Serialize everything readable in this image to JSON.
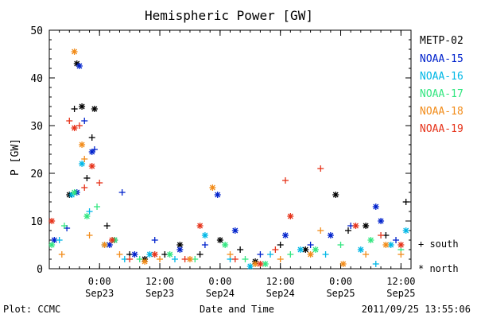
{
  "chart_data": {
    "type": "scatter",
    "title": "Hemispheric Power [GW]",
    "ylabel": "P [GW]",
    "xlabel": "Date and Time",
    "ylim": [
      0,
      50
    ],
    "yticks": [
      0,
      10,
      20,
      30,
      40,
      50
    ],
    "xlim": [
      "2011-09-22T14:00",
      "2011-09-25T14:00"
    ],
    "xticks": [
      {
        "time": "2011-09-23T00:00",
        "label_top": "0:00",
        "label_bottom": "Sep23"
      },
      {
        "time": "2011-09-23T12:00",
        "label_top": "12:00",
        "label_bottom": "Sep23"
      },
      {
        "time": "2011-09-24T00:00",
        "label_top": "0:00",
        "label_bottom": "Sep24"
      },
      {
        "time": "2011-09-24T12:00",
        "label_top": "12:00",
        "label_bottom": "Sep24"
      },
      {
        "time": "2011-09-25T00:00",
        "label_top": "0:00",
        "label_bottom": "Sep25"
      },
      {
        "time": "2011-09-25T12:00",
        "label_top": "12:00",
        "label_bottom": "Sep25"
      }
    ],
    "markers": {
      "south": "+",
      "north": "*"
    },
    "series": [
      {
        "name": "METP-02",
        "color": "#000000",
        "points": [
          {
            "t": "2011-09-22T18:00",
            "y": 15.5,
            "h": "north"
          },
          {
            "t": "2011-09-22T19:00",
            "y": 33.5,
            "h": "south"
          },
          {
            "t": "2011-09-22T19:30",
            "y": 43,
            "h": "north"
          },
          {
            "t": "2011-09-22T20:30",
            "y": 34,
            "h": "north"
          },
          {
            "t": "2011-09-22T21:30",
            "y": 19,
            "h": "south"
          },
          {
            "t": "2011-09-22T22:30",
            "y": 27.5,
            "h": "south"
          },
          {
            "t": "2011-09-22T23:00",
            "y": 33.5,
            "h": "north"
          },
          {
            "t": "2011-09-23T01:30",
            "y": 9,
            "h": "south"
          },
          {
            "t": "2011-09-23T03:00",
            "y": 6,
            "h": "north"
          },
          {
            "t": "2011-09-23T06:00",
            "y": 3,
            "h": "south"
          },
          {
            "t": "2011-09-23T09:00",
            "y": 2,
            "h": "north"
          },
          {
            "t": "2011-09-23T13:00",
            "y": 3,
            "h": "south"
          },
          {
            "t": "2011-09-23T16:00",
            "y": 5,
            "h": "north"
          },
          {
            "t": "2011-09-23T20:00",
            "y": 3,
            "h": "south"
          },
          {
            "t": "2011-09-24T00:00",
            "y": 6,
            "h": "north"
          },
          {
            "t": "2011-09-24T04:00",
            "y": 4,
            "h": "south"
          },
          {
            "t": "2011-09-24T07:00",
            "y": 1.5,
            "h": "north"
          },
          {
            "t": "2011-09-24T12:00",
            "y": 5,
            "h": "south"
          },
          {
            "t": "2011-09-24T17:00",
            "y": 4,
            "h": "north"
          },
          {
            "t": "2011-09-24T23:00",
            "y": 15.5,
            "h": "north"
          },
          {
            "t": "2011-09-25T01:30",
            "y": 8,
            "h": "south"
          },
          {
            "t": "2011-09-25T05:00",
            "y": 9,
            "h": "north"
          },
          {
            "t": "2011-09-25T09:00",
            "y": 7,
            "h": "south"
          },
          {
            "t": "2011-09-25T13:00",
            "y": 14,
            "h": "south"
          }
        ]
      },
      {
        "name": "NOAA-15",
        "color": "#0022cc",
        "points": [
          {
            "t": "2011-09-22T15:00",
            "y": 6,
            "h": "north"
          },
          {
            "t": "2011-09-22T17:30",
            "y": 8.5,
            "h": "south"
          },
          {
            "t": "2011-09-22T19:30",
            "y": 16,
            "h": "north"
          },
          {
            "t": "2011-09-22T20:00",
            "y": 42.5,
            "h": "north"
          },
          {
            "t": "2011-09-22T21:00",
            "y": 31,
            "h": "south"
          },
          {
            "t": "2011-09-22T22:30",
            "y": 24.5,
            "h": "north"
          },
          {
            "t": "2011-09-22T23:00",
            "y": 25,
            "h": "south"
          },
          {
            "t": "2011-09-23T02:00",
            "y": 5,
            "h": "north"
          },
          {
            "t": "2011-09-23T04:30",
            "y": 16,
            "h": "south"
          },
          {
            "t": "2011-09-23T07:00",
            "y": 3,
            "h": "north"
          },
          {
            "t": "2011-09-23T11:00",
            "y": 6,
            "h": "south"
          },
          {
            "t": "2011-09-23T16:00",
            "y": 4,
            "h": "north"
          },
          {
            "t": "2011-09-23T21:00",
            "y": 5,
            "h": "south"
          },
          {
            "t": "2011-09-23T23:30",
            "y": 15.5,
            "h": "north"
          },
          {
            "t": "2011-09-24T03:00",
            "y": 8,
            "h": "north"
          },
          {
            "t": "2011-09-24T08:00",
            "y": 3,
            "h": "south"
          },
          {
            "t": "2011-09-24T13:00",
            "y": 7,
            "h": "north"
          },
          {
            "t": "2011-09-24T18:00",
            "y": 5,
            "h": "south"
          },
          {
            "t": "2011-09-24T22:00",
            "y": 7,
            "h": "north"
          },
          {
            "t": "2011-09-25T02:00",
            "y": 9,
            "h": "south"
          },
          {
            "t": "2011-09-25T07:00",
            "y": 13,
            "h": "north"
          },
          {
            "t": "2011-09-25T08:00",
            "y": 10,
            "h": "north"
          },
          {
            "t": "2011-09-25T11:00",
            "y": 6,
            "h": "south"
          }
        ]
      },
      {
        "name": "NOAA-16",
        "color": "#00b7e6",
        "points": [
          {
            "t": "2011-09-22T16:00",
            "y": 6,
            "h": "south"
          },
          {
            "t": "2011-09-22T18:30",
            "y": 15.5,
            "h": "north"
          },
          {
            "t": "2011-09-22T20:30",
            "y": 22,
            "h": "north"
          },
          {
            "t": "2011-09-22T22:00",
            "y": 12,
            "h": "south"
          },
          {
            "t": "2011-09-23T01:00",
            "y": 5,
            "h": "north"
          },
          {
            "t": "2011-09-23T05:00",
            "y": 2,
            "h": "south"
          },
          {
            "t": "2011-09-23T10:00",
            "y": 3,
            "h": "north"
          },
          {
            "t": "2011-09-23T15:00",
            "y": 2,
            "h": "south"
          },
          {
            "t": "2011-09-23T21:00",
            "y": 7,
            "h": "north"
          },
          {
            "t": "2011-09-24T02:00",
            "y": 2,
            "h": "south"
          },
          {
            "t": "2011-09-24T06:00",
            "y": 0.5,
            "h": "north"
          },
          {
            "t": "2011-09-24T10:00",
            "y": 3,
            "h": "south"
          },
          {
            "t": "2011-09-24T16:00",
            "y": 4,
            "h": "north"
          },
          {
            "t": "2011-09-24T21:00",
            "y": 3,
            "h": "south"
          },
          {
            "t": "2011-09-25T04:00",
            "y": 4,
            "h": "north"
          },
          {
            "t": "2011-09-25T07:00",
            "y": 1,
            "h": "south"
          },
          {
            "t": "2011-09-25T10:00",
            "y": 5,
            "h": "north"
          },
          {
            "t": "2011-09-25T13:00",
            "y": 8,
            "h": "north"
          }
        ]
      },
      {
        "name": "NOAA-17",
        "color": "#33e680",
        "points": [
          {
            "t": "2011-09-22T14:30",
            "y": 5,
            "h": "north"
          },
          {
            "t": "2011-09-22T17:00",
            "y": 9,
            "h": "south"
          },
          {
            "t": "2011-09-22T19:00",
            "y": 16,
            "h": "north"
          },
          {
            "t": "2011-09-22T21:30",
            "y": 11,
            "h": "north"
          },
          {
            "t": "2011-09-22T23:30",
            "y": 13,
            "h": "south"
          },
          {
            "t": "2011-09-23T03:00",
            "y": 6,
            "h": "north"
          },
          {
            "t": "2011-09-23T08:00",
            "y": 2,
            "h": "south"
          },
          {
            "t": "2011-09-23T14:00",
            "y": 3,
            "h": "north"
          },
          {
            "t": "2011-09-23T19:00",
            "y": 2,
            "h": "south"
          },
          {
            "t": "2011-09-24T01:00",
            "y": 5,
            "h": "north"
          },
          {
            "t": "2011-09-24T05:00",
            "y": 2,
            "h": "south"
          },
          {
            "t": "2011-09-24T09:00",
            "y": 1,
            "h": "north"
          },
          {
            "t": "2011-09-24T14:00",
            "y": 3,
            "h": "south"
          },
          {
            "t": "2011-09-24T19:00",
            "y": 4,
            "h": "north"
          },
          {
            "t": "2011-09-25T00:00",
            "y": 5,
            "h": "south"
          },
          {
            "t": "2011-09-25T06:00",
            "y": 6,
            "h": "north"
          },
          {
            "t": "2011-09-25T12:00",
            "y": 4,
            "h": "south"
          }
        ]
      },
      {
        "name": "NOAA-18",
        "color": "#f28c1a",
        "points": [
          {
            "t": "2011-09-22T16:30",
            "y": 3,
            "h": "south"
          },
          {
            "t": "2011-09-22T19:00",
            "y": 45.5,
            "h": "north"
          },
          {
            "t": "2011-09-22T20:30",
            "y": 26,
            "h": "north"
          },
          {
            "t": "2011-09-22T21:00",
            "y": 23,
            "h": "south"
          },
          {
            "t": "2011-09-22T22:00",
            "y": 7,
            "h": "south"
          },
          {
            "t": "2011-09-23T01:00",
            "y": 5,
            "h": "north"
          },
          {
            "t": "2011-09-23T04:00",
            "y": 3,
            "h": "south"
          },
          {
            "t": "2011-09-23T09:00",
            "y": 1.5,
            "h": "north"
          },
          {
            "t": "2011-09-23T12:00",
            "y": 2,
            "h": "south"
          },
          {
            "t": "2011-09-23T18:00",
            "y": 2,
            "h": "north"
          },
          {
            "t": "2011-09-23T22:30",
            "y": 17,
            "h": "north"
          },
          {
            "t": "2011-09-24T02:00",
            "y": 3,
            "h": "south"
          },
          {
            "t": "2011-09-24T07:00",
            "y": 1,
            "h": "north"
          },
          {
            "t": "2011-09-24T12:00",
            "y": 2,
            "h": "south"
          },
          {
            "t": "2011-09-24T18:00",
            "y": 3,
            "h": "north"
          },
          {
            "t": "2011-09-24T20:00",
            "y": 8,
            "h": "south"
          },
          {
            "t": "2011-09-25T00:30",
            "y": 1,
            "h": "north"
          },
          {
            "t": "2011-09-25T05:00",
            "y": 3,
            "h": "south"
          },
          {
            "t": "2011-09-25T09:00",
            "y": 5,
            "h": "north"
          },
          {
            "t": "2011-09-25T12:00",
            "y": 3,
            "h": "south"
          }
        ]
      },
      {
        "name": "NOAA-19",
        "color": "#e6331a",
        "points": [
          {
            "t": "2011-09-22T14:30",
            "y": 10,
            "h": "north"
          },
          {
            "t": "2011-09-22T18:00",
            "y": 31,
            "h": "south"
          },
          {
            "t": "2011-09-22T19:00",
            "y": 29.5,
            "h": "north"
          },
          {
            "t": "2011-09-22T20:00",
            "y": 30,
            "h": "south"
          },
          {
            "t": "2011-09-22T21:00",
            "y": 17,
            "h": "south"
          },
          {
            "t": "2011-09-22T22:30",
            "y": 21.5,
            "h": "north"
          },
          {
            "t": "2011-09-23T00:00",
            "y": 18,
            "h": "south"
          },
          {
            "t": "2011-09-23T02:30",
            "y": 6,
            "h": "north"
          },
          {
            "t": "2011-09-23T06:00",
            "y": 2,
            "h": "south"
          },
          {
            "t": "2011-09-23T11:00",
            "y": 3,
            "h": "north"
          },
          {
            "t": "2011-09-23T17:00",
            "y": 2,
            "h": "south"
          },
          {
            "t": "2011-09-23T20:00",
            "y": 9,
            "h": "north"
          },
          {
            "t": "2011-09-24T03:00",
            "y": 2,
            "h": "south"
          },
          {
            "t": "2011-09-24T08:00",
            "y": 1,
            "h": "north"
          },
          {
            "t": "2011-09-24T11:00",
            "y": 4,
            "h": "south"
          },
          {
            "t": "2011-09-24T13:00",
            "y": 18.5,
            "h": "south"
          },
          {
            "t": "2011-09-24T14:00",
            "y": 11,
            "h": "north"
          },
          {
            "t": "2011-09-24T20:00",
            "y": 21,
            "h": "south"
          },
          {
            "t": "2011-09-25T03:00",
            "y": 9,
            "h": "north"
          },
          {
            "t": "2011-09-25T08:00",
            "y": 7,
            "h": "south"
          },
          {
            "t": "2011-09-25T12:00",
            "y": 5,
            "h": "north"
          }
        ]
      }
    ]
  },
  "legend": {
    "items": [
      {
        "label": "METP-02",
        "color": "#000000"
      },
      {
        "label": "NOAA-15",
        "color": "#0022cc"
      },
      {
        "label": "NOAA-16",
        "color": "#00b7e6"
      },
      {
        "label": "NOAA-17",
        "color": "#33e680"
      },
      {
        "label": "NOAA-18",
        "color": "#f28c1a"
      },
      {
        "label": "NOAA-19",
        "color": "#e6331a"
      }
    ],
    "south_label": "+ south",
    "north_label": "* north"
  },
  "footer": {
    "left": "Plot: CCMC",
    "center": "Date and Time",
    "right": "2011/09/25 13:55:06"
  }
}
